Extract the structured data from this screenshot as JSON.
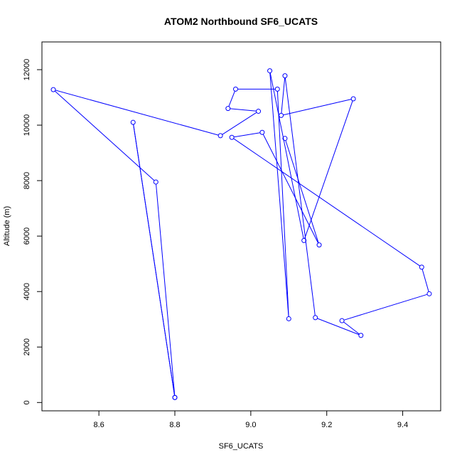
{
  "chart_data": {
    "type": "line",
    "title": "ATOM2 Northbound SF6_UCATS",
    "xlabel": "SF6_UCATS",
    "ylabel": "Altitude (m)",
    "xlim": [
      8.45,
      9.5
    ],
    "ylim": [
      -300,
      13000
    ],
    "x_ticks": [
      8.6,
      8.8,
      9.0,
      9.2,
      9.4
    ],
    "x_tick_labels": [
      "8.6",
      "8.8",
      "9.0",
      "9.2",
      "9.4"
    ],
    "y_ticks": [
      0,
      2000,
      4000,
      6000,
      8000,
      10000,
      12000
    ],
    "y_tick_labels": [
      "0",
      "2000",
      "4000",
      "6000",
      "8000",
      "10000",
      "12000"
    ],
    "grid": false,
    "series": [
      {
        "color": "#0000ff",
        "marker": "open-circle",
        "points": [
          [
            8.8,
            180
          ],
          [
            8.69,
            10100
          ],
          [
            8.8,
            180
          ],
          [
            8.75,
            7950
          ],
          [
            8.48,
            11280
          ],
          [
            8.92,
            9620
          ],
          [
            9.02,
            10500
          ],
          [
            8.94,
            10600
          ],
          [
            8.96,
            11300
          ],
          [
            9.07,
            11300
          ],
          [
            9.1,
            3020
          ],
          [
            9.05,
            11960
          ],
          [
            9.14,
            5840
          ],
          [
            9.27,
            10950
          ],
          [
            9.08,
            10350
          ],
          [
            9.09,
            11780
          ],
          [
            9.17,
            3060
          ],
          [
            9.29,
            2420
          ],
          [
            9.24,
            2950
          ],
          [
            9.47,
            3920
          ],
          [
            9.45,
            4880
          ],
          [
            8.95,
            9560
          ],
          [
            9.03,
            9740
          ],
          [
            9.18,
            5680
          ],
          [
            9.09,
            9520
          ]
        ]
      }
    ]
  }
}
